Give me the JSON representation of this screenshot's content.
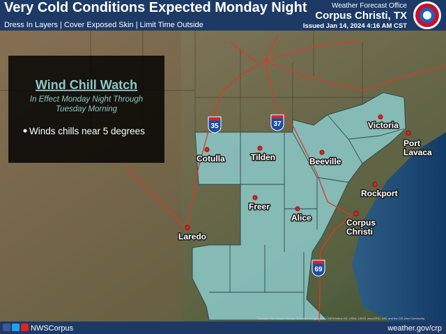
{
  "header": {
    "title": "Very Cold Conditions Expected Monday Night",
    "subtitle": "Dress In Layers | Cover Exposed Skin | Limit Time Outside",
    "office": "Weather Forecast Office",
    "location": "Corpus Christi, TX",
    "issued": "Issued Jan 14, 2024 4:16 AM CST"
  },
  "panel": {
    "title": "Wind Chill Watch",
    "subtitle_lines": [
      "In Effect Monday Night Through",
      "Tuesday Morning"
    ],
    "bullet": "Winds chills near 5 degrees"
  },
  "cities": [
    {
      "lines": [
        "Cotulla"
      ]
    },
    {
      "lines": [
        "Tilden"
      ]
    },
    {
      "lines": [
        "Victoria"
      ]
    },
    {
      "lines": [
        "Port",
        "Lavaca"
      ]
    },
    {
      "lines": [
        "Beeville"
      ]
    },
    {
      "lines": [
        "Rockport"
      ]
    },
    {
      "lines": [
        "Freer"
      ]
    },
    {
      "lines": [
        "Alice"
      ]
    },
    {
      "lines": [
        "Corpus",
        "Christi"
      ]
    },
    {
      "lines": [
        "Laredo"
      ]
    }
  ],
  "highways": [
    "35",
    "37",
    "69"
  ],
  "attribution": "Sources: Esri, Maxar, GeoEye, Earthstar Geographics, CNES/Airbus DS, USDA, USGS, AeroGRID, IGN, and the GIS User Community",
  "footer": {
    "social": "NWSCorpus",
    "url": "weather.gov/crp"
  }
}
